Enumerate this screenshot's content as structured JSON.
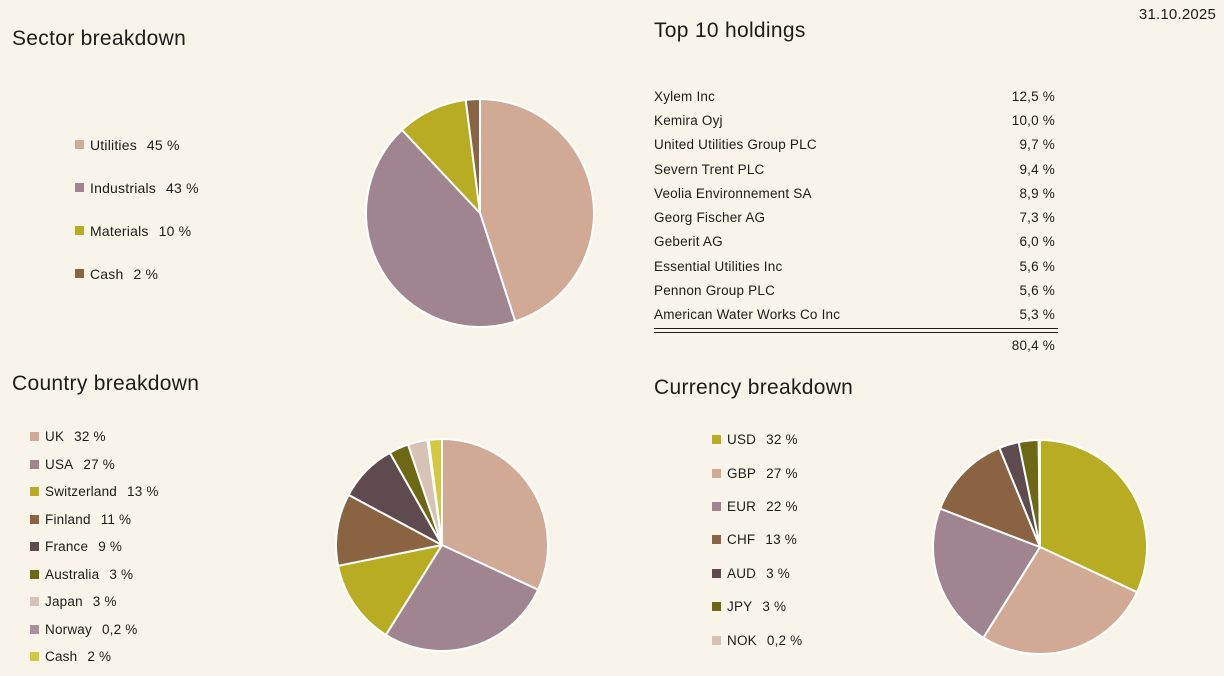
{
  "page": {
    "date": "31.10.2025",
    "background_color": "#f8f4ea",
    "text_color": "#1c1c1a",
    "slice_border_color": "#ffffff"
  },
  "chart_data": [
    {
      "id": "sector",
      "type": "pie",
      "title": "Sector breakdown",
      "labels": [
        "Utilities",
        "Industrials",
        "Materials",
        "Cash"
      ],
      "values": [
        45,
        43,
        10,
        2
      ],
      "display_values": [
        "45 %",
        "43 %",
        "10 %",
        "2 %"
      ],
      "colors": [
        "#d0aa95",
        "#a08590",
        "#b8ad22",
        "#8a6342"
      ],
      "legend_position": "left",
      "start_angle": "top",
      "direction": "clockwise"
    },
    {
      "id": "holdings",
      "type": "table",
      "title": "Top 10 holdings",
      "rows": [
        {
          "name": "Xylem Inc",
          "value": "12,5 %"
        },
        {
          "name": "Kemira Oyj",
          "value": "10,0 %"
        },
        {
          "name": "United Utilities Group PLC",
          "value": "9,7 %"
        },
        {
          "name": "Severn Trent PLC",
          "value": "9,4 %"
        },
        {
          "name": "Veolia Environnement SA",
          "value": "8,9 %"
        },
        {
          "name": "Georg Fischer AG",
          "value": "7,3 %"
        },
        {
          "name": "Geberit AG",
          "value": "6,0 %"
        },
        {
          "name": "Essential Utilities Inc",
          "value": "5,6 %"
        },
        {
          "name": "Pennon Group PLC",
          "value": "5,6 %"
        },
        {
          "name": "American Water Works Co Inc",
          "value": "5,3 %"
        }
      ],
      "total": "80,4 %"
    },
    {
      "id": "country",
      "type": "pie",
      "title": "Country breakdown",
      "labels": [
        "UK",
        "USA",
        "Switzerland",
        "Finland",
        "France",
        "Australia",
        "Japan",
        "Norway",
        "Cash"
      ],
      "values": [
        32,
        27,
        13,
        11,
        9,
        3,
        3,
        0.2,
        2
      ],
      "display_values": [
        "32 %",
        "27 %",
        "13 %",
        "11 %",
        "9 %",
        "3 %",
        "3 %",
        "0,2 %",
        "2 %"
      ],
      "colors": [
        "#d0aa95",
        "#a08590",
        "#b8ad22",
        "#8a6342",
        "#5f4a50",
        "#6e6714",
        "#d7c2b5",
        "#a9909b",
        "#d3c83e"
      ],
      "legend_position": "left",
      "start_angle": "top",
      "direction": "clockwise"
    },
    {
      "id": "currency",
      "type": "pie",
      "title": "Currency breakdown",
      "labels": [
        "USD",
        "GBP",
        "EUR",
        "CHF",
        "AUD",
        "JPY",
        "NOK"
      ],
      "values": [
        32,
        27,
        22,
        13,
        3,
        3,
        0.2
      ],
      "display_values": [
        "32 %",
        "27 %",
        "22 %",
        "13 %",
        "3 %",
        "3 %",
        "0,2 %"
      ],
      "colors": [
        "#b8ad22",
        "#d0aa95",
        "#a08590",
        "#8a6342",
        "#5f4a50",
        "#6e6714",
        "#d7c2b5"
      ],
      "legend_position": "left",
      "start_angle": "top",
      "direction": "clockwise"
    }
  ]
}
